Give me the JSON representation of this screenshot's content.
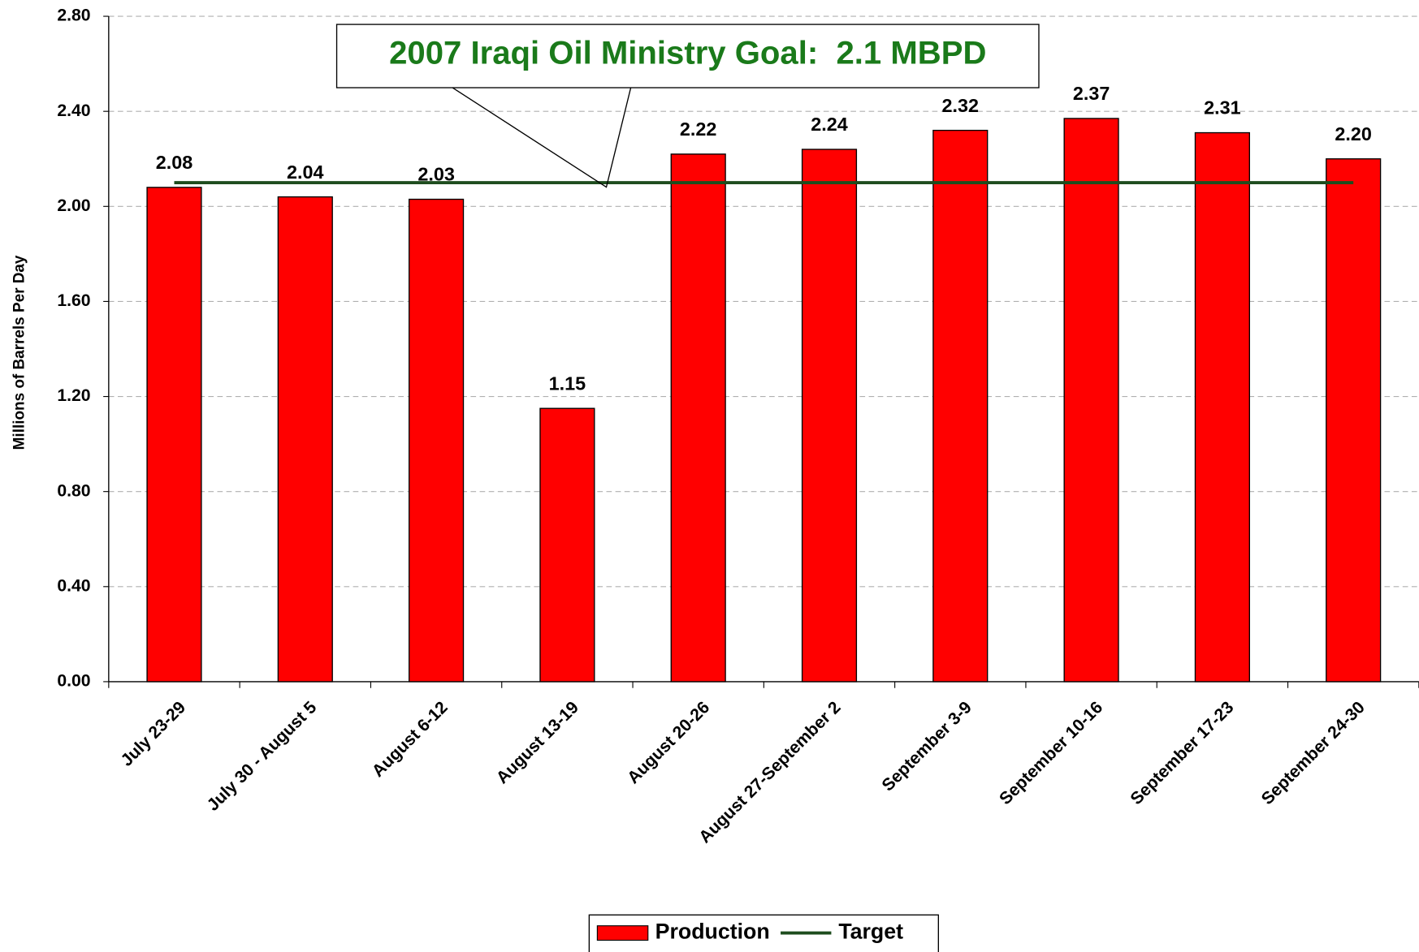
{
  "chart_data": {
    "type": "bar",
    "annotation": "2007 Iraqi Oil Ministry Goal:  2.1 MBPD",
    "y_label": "Millions of Barrels Per Day",
    "categories": [
      "July 23-29",
      "July 30 - August 5",
      "August 6-12",
      "August 13-19",
      "August 20-26",
      "August 27-September 2",
      "September 3-9",
      "September 10-16",
      "September 17-23",
      "September 24-30"
    ],
    "series": [
      {
        "name": "Production",
        "type": "bar",
        "color": "#ff0000",
        "values": [
          2.08,
          2.04,
          2.03,
          1.15,
          2.22,
          2.24,
          2.32,
          2.37,
          2.31,
          2.2
        ],
        "value_labels": [
          "2.08",
          "2.04",
          "2.03",
          "1.15",
          "2.22",
          "2.24",
          "2.32",
          "2.37",
          "2.31",
          "2.20"
        ]
      },
      {
        "name": "Target",
        "type": "line",
        "color": "#1e4d1e",
        "values": [
          2.1,
          2.1,
          2.1,
          2.1,
          2.1,
          2.1,
          2.1,
          2.1,
          2.1,
          2.1
        ]
      }
    ],
    "ylim": [
      0,
      2.8
    ],
    "yticks": [
      {
        "value": 0,
        "label": "0.00"
      },
      {
        "value": 0.4,
        "label": "0.40"
      },
      {
        "value": 0.8,
        "label": "0.80"
      },
      {
        "value": 1.2,
        "label": "1.20"
      },
      {
        "value": 1.6,
        "label": "1.60"
      },
      {
        "value": 2.0,
        "label": "2.00"
      },
      {
        "value": 2.4,
        "label": "2.40"
      },
      {
        "value": 2.8,
        "label": "2.80"
      }
    ],
    "grid": true,
    "legend": "bottom"
  }
}
